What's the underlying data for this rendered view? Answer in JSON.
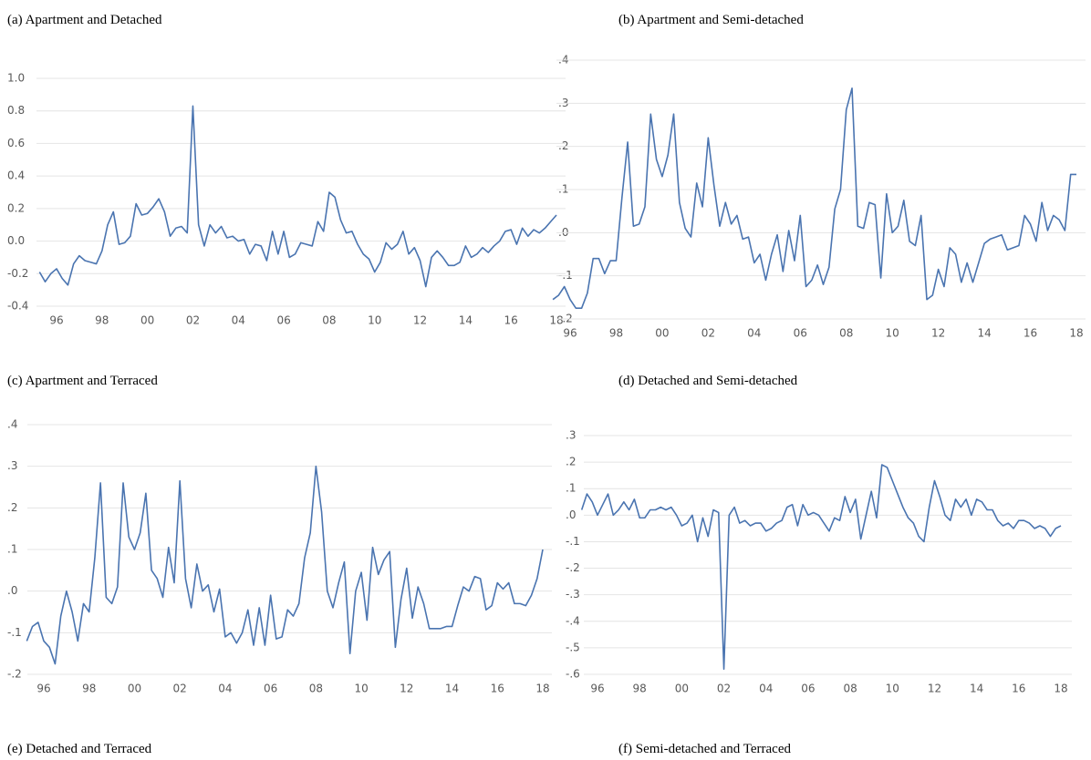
{
  "chart_data": [
    {
      "type": "line",
      "title": "(a) Apartment and Detached",
      "color": "#4a74b0",
      "grid": true,
      "categories": [
        null,
        null,
        null,
        "96",
        null,
        null,
        null,
        null,
        null,
        null,
        null,
        "98",
        null,
        null,
        null,
        null,
        null,
        null,
        null,
        "00",
        null,
        null,
        null,
        null,
        null,
        null,
        null,
        "02",
        null,
        null,
        null,
        null,
        null,
        null,
        null,
        "04",
        null,
        null,
        null,
        null,
        null,
        null,
        null,
        "06",
        null,
        null,
        null,
        null,
        null,
        null,
        null,
        "08",
        null,
        null,
        null,
        null,
        null,
        null,
        null,
        "10",
        null,
        null,
        null,
        null,
        null,
        null,
        null,
        "12",
        null,
        null,
        null,
        null,
        null,
        null,
        null,
        "14",
        null,
        null,
        null,
        null,
        null,
        null,
        null,
        "16",
        null,
        null,
        null,
        null,
        null,
        null,
        null,
        "18"
      ],
      "values": [
        -0.19,
        -0.25,
        -0.2,
        -0.17,
        -0.23,
        -0.27,
        -0.14,
        -0.09,
        -0.12,
        -0.13,
        -0.14,
        -0.06,
        0.1,
        0.18,
        -0.02,
        -0.01,
        0.03,
        0.23,
        0.16,
        0.17,
        0.21,
        0.26,
        0.18,
        0.03,
        0.08,
        0.09,
        0.05,
        0.83,
        0.1,
        -0.03,
        0.1,
        0.05,
        0.09,
        0.02,
        0.03,
        0.0,
        0.01,
        -0.08,
        -0.02,
        -0.03,
        -0.12,
        0.06,
        -0.08,
        0.06,
        -0.1,
        -0.08,
        -0.01,
        -0.02,
        -0.03,
        0.12,
        0.06,
        0.3,
        0.27,
        0.13,
        0.05,
        0.06,
        -0.02,
        -0.08,
        -0.11,
        -0.19,
        -0.13,
        -0.01,
        -0.05,
        -0.02,
        0.06,
        -0.08,
        -0.04,
        -0.12,
        -0.28,
        -0.1,
        -0.06,
        -0.1,
        -0.15,
        -0.15,
        -0.13,
        -0.03,
        -0.1,
        -0.08,
        -0.04,
        -0.07,
        -0.03,
        0.0,
        0.06,
        0.07,
        -0.02,
        0.08,
        0.03,
        0.07,
        0.05,
        0.08,
        0.12,
        0.16
      ],
      "ylim": [
        -0.4,
        1.0
      ],
      "yticks": [
        {
          "value": 1.0,
          "label": "1.0"
        },
        {
          "value": 0.8,
          "label": "0.8"
        },
        {
          "value": 0.6,
          "label": "0.6"
        },
        {
          "value": 0.4,
          "label": "0.4"
        },
        {
          "value": 0.2,
          "label": "0.2"
        },
        {
          "value": 0.0,
          "label": "0.0"
        },
        {
          "value": -0.2,
          "label": "-0.2"
        },
        {
          "value": -0.4,
          "label": "-0.4"
        }
      ]
    },
    {
      "type": "line",
      "title": "(b) Apartment and Semi-detached",
      "color": "#4a74b0",
      "grid": true,
      "categories": [
        null,
        null,
        null,
        "96",
        null,
        null,
        null,
        null,
        null,
        null,
        null,
        "98",
        null,
        null,
        null,
        null,
        null,
        null,
        null,
        "00",
        null,
        null,
        null,
        null,
        null,
        null,
        null,
        "02",
        null,
        null,
        null,
        null,
        null,
        null,
        null,
        "04",
        null,
        null,
        null,
        null,
        null,
        null,
        null,
        "06",
        null,
        null,
        null,
        null,
        null,
        null,
        null,
        "08",
        null,
        null,
        null,
        null,
        null,
        null,
        null,
        "10",
        null,
        null,
        null,
        null,
        null,
        null,
        null,
        "12",
        null,
        null,
        null,
        null,
        null,
        null,
        null,
        "14",
        null,
        null,
        null,
        null,
        null,
        null,
        null,
        "16",
        null,
        null,
        null,
        null,
        null,
        null,
        null,
        "18"
      ],
      "values": [
        -0.155,
        -0.145,
        -0.125,
        -0.155,
        -0.175,
        -0.175,
        -0.14,
        -0.06,
        -0.06,
        -0.095,
        -0.065,
        -0.065,
        0.08,
        0.21,
        0.015,
        0.02,
        0.06,
        0.275,
        0.17,
        0.13,
        0.18,
        0.275,
        0.07,
        0.01,
        -0.01,
        0.115,
        0.06,
        0.22,
        0.11,
        0.015,
        0.07,
        0.02,
        0.04,
        -0.015,
        -0.01,
        -0.07,
        -0.05,
        -0.11,
        -0.05,
        -0.005,
        -0.09,
        0.005,
        -0.065,
        0.04,
        -0.125,
        -0.11,
        -0.075,
        -0.12,
        -0.08,
        0.055,
        0.1,
        0.285,
        0.335,
        0.015,
        0.01,
        0.07,
        0.065,
        -0.105,
        0.09,
        0.0,
        0.015,
        0.075,
        -0.02,
        -0.03,
        0.04,
        -0.155,
        -0.145,
        -0.085,
        -0.125,
        -0.035,
        -0.05,
        -0.115,
        -0.07,
        -0.115,
        -0.07,
        -0.025,
        -0.015,
        -0.01,
        -0.005,
        -0.04,
        -0.035,
        -0.03,
        0.04,
        0.02,
        -0.02,
        0.07,
        0.005,
        0.04,
        0.03,
        0.005,
        0.135,
        0.135
      ],
      "ylim": [
        -0.2,
        0.4
      ],
      "yticks": [
        {
          "value": 0.4,
          "label": ".4"
        },
        {
          "value": 0.3,
          "label": ".3"
        },
        {
          "value": 0.2,
          "label": ".2"
        },
        {
          "value": 0.1,
          "label": ".1"
        },
        {
          "value": 0.0,
          "label": ".0"
        },
        {
          "value": -0.1,
          "label": "-.1"
        },
        {
          "value": -0.2,
          "label": "-.2"
        }
      ]
    },
    {
      "type": "line",
      "title": "(c) Apartment and Terraced",
      "color": "#4a74b0",
      "grid": true,
      "categories": [
        null,
        null,
        null,
        "96",
        null,
        null,
        null,
        null,
        null,
        null,
        null,
        "98",
        null,
        null,
        null,
        null,
        null,
        null,
        null,
        "00",
        null,
        null,
        null,
        null,
        null,
        null,
        null,
        "02",
        null,
        null,
        null,
        null,
        null,
        null,
        null,
        "04",
        null,
        null,
        null,
        null,
        null,
        null,
        null,
        "06",
        null,
        null,
        null,
        null,
        null,
        null,
        null,
        "08",
        null,
        null,
        null,
        null,
        null,
        null,
        null,
        "10",
        null,
        null,
        null,
        null,
        null,
        null,
        null,
        "12",
        null,
        null,
        null,
        null,
        null,
        null,
        null,
        "14",
        null,
        null,
        null,
        null,
        null,
        null,
        null,
        "16",
        null,
        null,
        null,
        null,
        null,
        null,
        null,
        "18"
      ],
      "values": [
        -0.12,
        -0.085,
        -0.075,
        -0.12,
        -0.135,
        -0.175,
        -0.06,
        0.0,
        -0.05,
        -0.12,
        -0.03,
        -0.05,
        0.08,
        0.26,
        -0.015,
        -0.03,
        0.01,
        0.26,
        0.13,
        0.1,
        0.14,
        0.235,
        0.05,
        0.03,
        -0.015,
        0.105,
        0.02,
        0.265,
        0.03,
        -0.04,
        0.065,
        0.0,
        0.015,
        -0.05,
        0.005,
        -0.11,
        -0.1,
        -0.125,
        -0.1,
        -0.045,
        -0.13,
        -0.04,
        -0.13,
        -0.01,
        -0.115,
        -0.11,
        -0.045,
        -0.06,
        -0.03,
        0.08,
        0.14,
        0.3,
        0.19,
        0.0,
        -0.04,
        0.02,
        0.07,
        -0.15,
        0.0,
        0.045,
        -0.07,
        0.105,
        0.04,
        0.075,
        0.095,
        -0.135,
        -0.02,
        0.055,
        -0.065,
        0.01,
        -0.03,
        -0.09,
        -0.09,
        -0.09,
        -0.085,
        -0.085,
        -0.035,
        0.01,
        0.0,
        0.035,
        0.03,
        -0.045,
        -0.035,
        0.02,
        0.005,
        0.02,
        -0.03,
        -0.03,
        -0.035,
        -0.01,
        0.03,
        0.1
      ],
      "ylim": [
        -0.2,
        0.4
      ],
      "yticks": [
        {
          "value": 0.4,
          "label": ".4"
        },
        {
          "value": 0.3,
          "label": ".3"
        },
        {
          "value": 0.2,
          "label": ".2"
        },
        {
          "value": 0.1,
          "label": ".1"
        },
        {
          "value": 0.0,
          "label": ".0"
        },
        {
          "value": -0.1,
          "label": "-.1"
        },
        {
          "value": -0.2,
          "label": "-.2"
        }
      ]
    },
    {
      "type": "line",
      "title": "(d) Detached and Semi-detached",
      "color": "#4a74b0",
      "grid": true,
      "categories": [
        null,
        null,
        null,
        "96",
        null,
        null,
        null,
        null,
        null,
        null,
        null,
        "98",
        null,
        null,
        null,
        null,
        null,
        null,
        null,
        "00",
        null,
        null,
        null,
        null,
        null,
        null,
        null,
        "02",
        null,
        null,
        null,
        null,
        null,
        null,
        null,
        "04",
        null,
        null,
        null,
        null,
        null,
        null,
        null,
        "06",
        null,
        null,
        null,
        null,
        null,
        null,
        null,
        "08",
        null,
        null,
        null,
        null,
        null,
        null,
        null,
        "10",
        null,
        null,
        null,
        null,
        null,
        null,
        null,
        "12",
        null,
        null,
        null,
        null,
        null,
        null,
        null,
        "14",
        null,
        null,
        null,
        null,
        null,
        null,
        null,
        "16",
        null,
        null,
        null,
        null,
        null,
        null,
        null,
        "18"
      ],
      "values": [
        0.02,
        0.08,
        0.05,
        0.0,
        0.04,
        0.08,
        0.0,
        0.02,
        0.05,
        0.02,
        0.06,
        -0.01,
        -0.01,
        0.02,
        0.02,
        0.03,
        0.02,
        0.03,
        0.0,
        -0.04,
        -0.03,
        0.0,
        -0.1,
        -0.01,
        -0.08,
        0.02,
        0.01,
        -0.58,
        0.0,
        0.03,
        -0.03,
        -0.02,
        -0.04,
        -0.03,
        -0.03,
        -0.06,
        -0.05,
        -0.03,
        -0.02,
        0.03,
        0.04,
        -0.04,
        0.04,
        0.0,
        0.01,
        0.0,
        -0.03,
        -0.06,
        -0.01,
        -0.02,
        0.07,
        0.01,
        0.06,
        -0.09,
        0.0,
        0.09,
        -0.01,
        0.19,
        0.18,
        0.13,
        0.08,
        0.03,
        -0.01,
        -0.03,
        -0.08,
        -0.1,
        0.03,
        0.13,
        0.07,
        0.0,
        -0.02,
        0.06,
        0.03,
        0.06,
        0.0,
        0.06,
        0.05,
        0.02,
        0.02,
        -0.02,
        -0.04,
        -0.03,
        -0.05,
        -0.02,
        -0.02,
        -0.03,
        -0.05,
        -0.04,
        -0.05,
        -0.08,
        -0.05,
        -0.04
      ],
      "ylim": [
        -0.6,
        0.3
      ],
      "yticks": [
        {
          "value": 0.3,
          "label": ".3"
        },
        {
          "value": 0.2,
          "label": ".2"
        },
        {
          "value": 0.1,
          "label": ".1"
        },
        {
          "value": 0.0,
          "label": ".0"
        },
        {
          "value": -0.1,
          "label": "-.1"
        },
        {
          "value": -0.2,
          "label": "-.2"
        },
        {
          "value": -0.3,
          "label": "-.3"
        },
        {
          "value": -0.4,
          "label": "-.4"
        },
        {
          "value": -0.5,
          "label": "-.5"
        },
        {
          "value": -0.6,
          "label": "-.6"
        }
      ]
    }
  ],
  "captions": [
    "(e) Detached and Terraced",
    "(f) Semi-detached and Terraced"
  ]
}
